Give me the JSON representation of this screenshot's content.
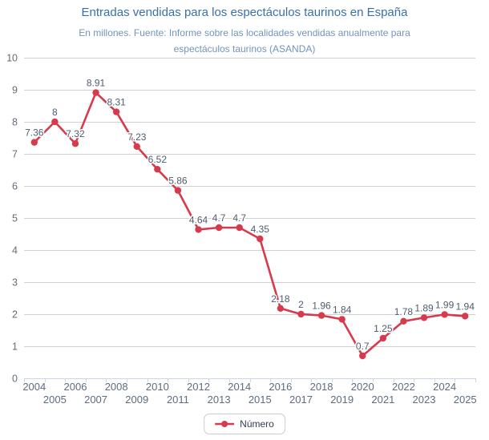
{
  "colors": {
    "series": "#d63a4d",
    "title": "#3a70aa",
    "subtitle": "#7094bd",
    "grid": "#d0d0d0",
    "axis": "#ccd6eb",
    "data_label": "#4e5c6e",
    "x_label": "#5d6c80",
    "y_label": "#666b75",
    "legend_text": "#323d4f",
    "legend_border": "#cccccc"
  },
  "chart_data": {
    "type": "line",
    "title": "Entradas vendidas para los espectáculos taurinos en España",
    "subtitle": "En millones. Fuente: Informe sobre las localidades vendidas anualmente para espectáculos taurinos (ASANDA)",
    "categories": [
      "2004",
      "2005",
      "2006",
      "2007",
      "2008",
      "2009",
      "2010",
      "2011",
      "2012",
      "2013",
      "2014",
      "2015",
      "2016",
      "2017",
      "2018",
      "2019",
      "2020",
      "2021",
      "2022",
      "2023",
      "2024",
      "2025"
    ],
    "series": [
      {
        "name": "Número",
        "values": [
          7.36,
          8,
          7.32,
          8.91,
          8.31,
          7.23,
          6.52,
          5.86,
          4.64,
          4.7,
          4.7,
          4.35,
          2.18,
          2,
          1.96,
          1.84,
          0.7,
          1.25,
          1.78,
          1.89,
          1.99,
          1.94
        ]
      }
    ],
    "data_labels": [
      "7.36",
      "8",
      "7.32",
      "8.91",
      "8.31",
      "7.23",
      "6.52",
      "5.86",
      "4.64",
      "4.7",
      "4.7",
      "4.35",
      "2.18",
      "2",
      "1.96",
      "1.84",
      "0.7",
      "1.25",
      "1.78",
      "1.89",
      "1.99",
      "1.94"
    ],
    "xlabel": "",
    "ylabel": "",
    "ylim": [
      0,
      10
    ],
    "yticks": [
      0,
      1,
      2,
      3,
      4,
      5,
      6,
      7,
      8,
      9,
      10
    ],
    "grid": true,
    "x_labels_staggered": true,
    "legend_position": "bottom"
  }
}
